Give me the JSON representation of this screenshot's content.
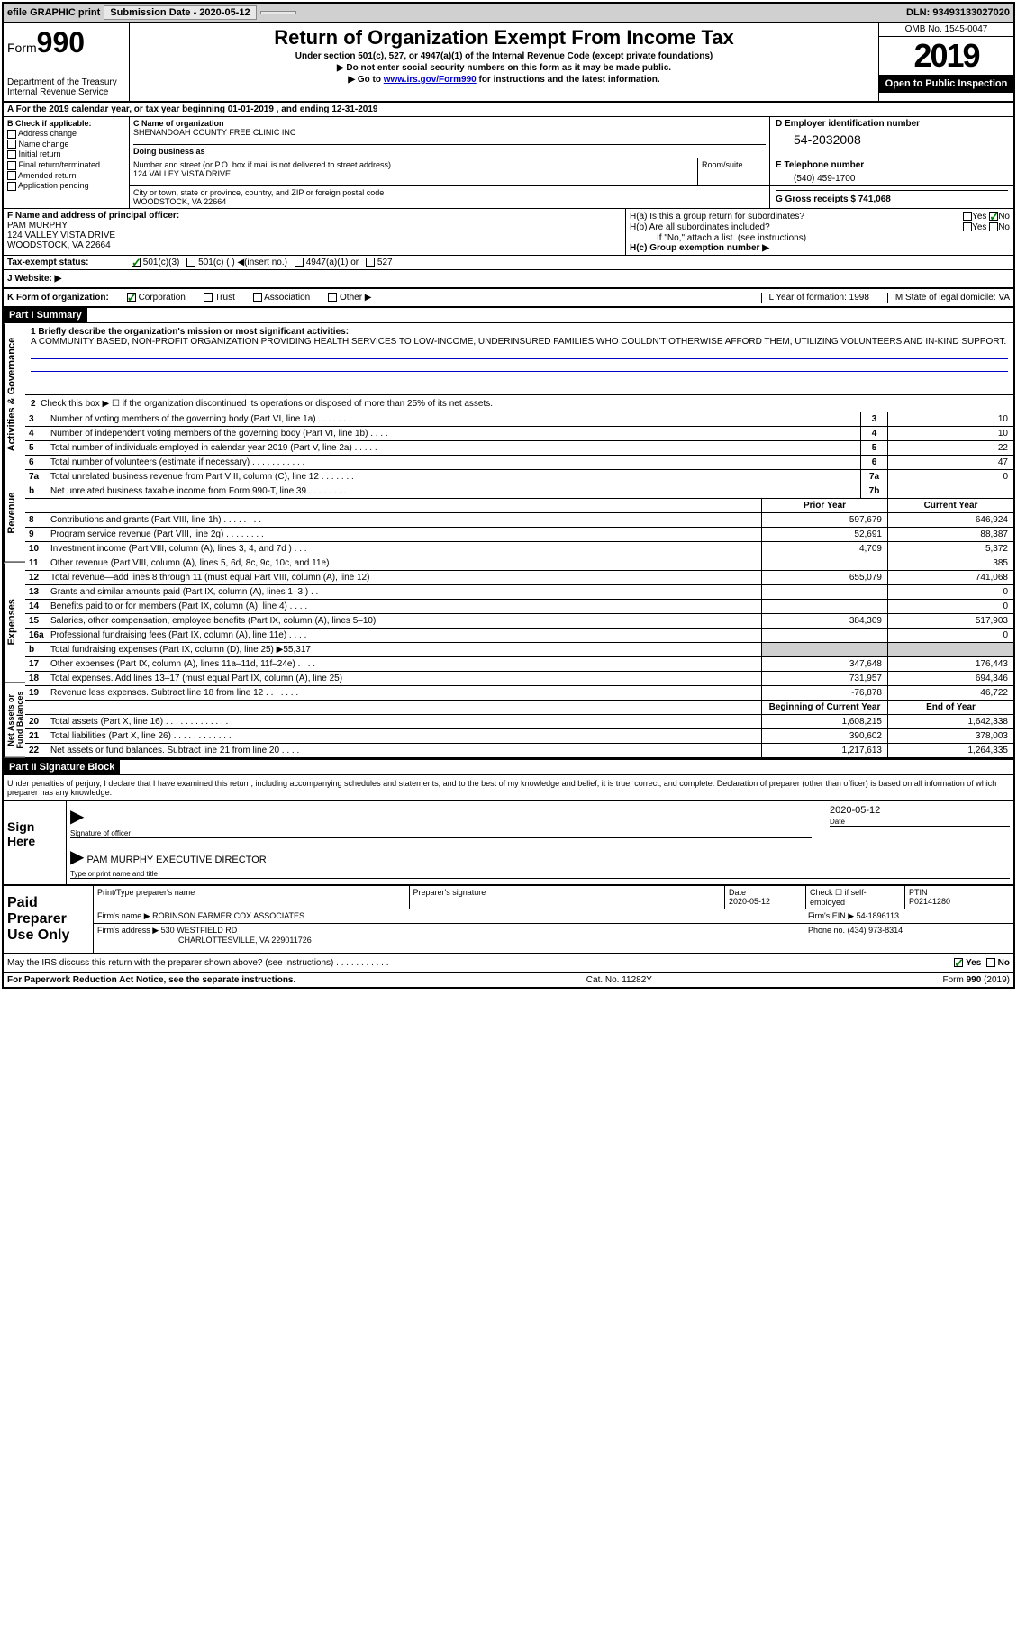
{
  "topbar": {
    "efile": "efile GRAPHIC print",
    "submission_label": "Submission Date - 2020-05-12",
    "dln": "DLN: 93493133027020"
  },
  "header": {
    "form_label": "Form",
    "form_number": "990",
    "dept": "Department of the Treasury\nInternal Revenue Service",
    "title": "Return of Organization Exempt From Income Tax",
    "subtitle1": "Under section 501(c), 527, or 4947(a)(1) of the Internal Revenue Code (except private foundations)",
    "subtitle2": "▶ Do not enter social security numbers on this form as it may be made public.",
    "subtitle3_prefix": "▶ Go to ",
    "subtitle3_link": "www.irs.gov/Form990",
    "subtitle3_suffix": " for instructions and the latest information.",
    "omb": "OMB No. 1545-0047",
    "year": "2019",
    "open_public": "Open to Public Inspection"
  },
  "rowA": "A For the 2019 calendar year, or tax year beginning 01-01-2019   , and ending 12-31-2019",
  "sectionB": {
    "header": "B Check if applicable:",
    "items": [
      "Address change",
      "Name change",
      "Initial return",
      "Final return/terminated",
      "Amended return",
      "Application pending"
    ]
  },
  "sectionC": {
    "name_lbl": "C Name of organization",
    "name": "SHENANDOAH COUNTY FREE CLINIC INC",
    "dba_lbl": "Doing business as",
    "addr_lbl": "Number and street (or P.O. box if mail is not delivered to street address)",
    "addr": "124 VALLEY VISTA DRIVE",
    "room_lbl": "Room/suite",
    "city_lbl": "City or town, state or province, country, and ZIP or foreign postal code",
    "city": "WOODSTOCK, VA  22664"
  },
  "sectionD": {
    "lbl": "D Employer identification number",
    "val": "54-2032008"
  },
  "sectionE": {
    "lbl": "E Telephone number",
    "val": "(540) 459-1700"
  },
  "sectionG": {
    "lbl": "G Gross receipts $ 741,068"
  },
  "sectionF": {
    "lbl": "F  Name and address of principal officer:",
    "name": "PAM MURPHY",
    "addr1": "124 VALLEY VISTA DRIVE",
    "addr2": "WOODSTOCK, VA  22664"
  },
  "sectionH": {
    "a": "H(a)  Is this a group return for subordinates?",
    "a_no": "No",
    "b": "H(b)  Are all subordinates included?",
    "note": "If \"No,\" attach a list. (see instructions)",
    "c": "H(c)  Group exemption number ▶"
  },
  "taxStatus": {
    "lbl": "Tax-exempt status:",
    "opts": [
      "501(c)(3)",
      "501(c) (  ) ◀(insert no.)",
      "4947(a)(1) or",
      "527"
    ]
  },
  "website": "J   Website: ▶",
  "rowK": {
    "k": "K Form of organization:",
    "k_opts": [
      "Corporation",
      "Trust",
      "Association",
      "Other ▶"
    ],
    "l": "L Year of formation: 1998",
    "m": "M State of legal domicile: VA"
  },
  "part1": {
    "header": "Part I      Summary",
    "side_gov": "Activities & Governance",
    "side_rev": "Revenue",
    "side_exp": "Expenses",
    "side_net": "Net Assets or Fund Balances",
    "line1_lbl": "1  Briefly describe the organization's mission or most significant activities:",
    "line1_text": "A COMMUNITY BASED, NON-PROFIT ORGANIZATION PROVIDING HEALTH SERVICES TO LOW-INCOME, UNDERINSURED FAMILIES WHO COULDN'T OTHERWISE AFFORD THEM, UTILIZING VOLUNTEERS AND IN-KIND SUPPORT.",
    "line2": "Check this box ▶ ☐ if the organization discontinued its operations or disposed of more than 25% of its net assets.",
    "hdr_prior": "Prior Year",
    "hdr_current": "Current Year",
    "hdr_begin": "Beginning of Current Year",
    "hdr_end": "End of Year",
    "lines_gov": [
      {
        "n": "3",
        "d": "Number of voting members of the governing body (Part VI, line 1a)  .    .    .    .    .    .    .",
        "box": "3",
        "v": "10"
      },
      {
        "n": "4",
        "d": "Number of independent voting members of the governing body (Part VI, line 1b)  .    .    .    .",
        "box": "4",
        "v": "10"
      },
      {
        "n": "5",
        "d": "Total number of individuals employed in calendar year 2019 (Part V, line 2a)  .    .    .    .    .",
        "box": "5",
        "v": "22"
      },
      {
        "n": "6",
        "d": "Total number of volunteers (estimate if necessary)    .    .    .    .    .    .    .    .    .    .    .",
        "box": "6",
        "v": "47"
      },
      {
        "n": "7a",
        "d": "Total unrelated business revenue from Part VIII, column (C), line 12   .    .    .    .    .    .    .",
        "box": "7a",
        "v": "0"
      },
      {
        "n": "b",
        "d": "Net unrelated business taxable income from Form 990-T, line 39   .    .    .    .    .    .    .    .",
        "box": "7b",
        "v": ""
      }
    ],
    "lines_rev": [
      {
        "n": "8",
        "d": "Contributions and grants (Part VIII, line 1h)   .    .    .    .    .    .    .    .",
        "p": "597,679",
        "c": "646,924"
      },
      {
        "n": "9",
        "d": "Program service revenue (Part VIII, line 2g)    .    .    .    .    .    .    .    .",
        "p": "52,691",
        "c": "88,387"
      },
      {
        "n": "10",
        "d": "Investment income (Part VIII, column (A), lines 3, 4, and 7d )    .    .    .",
        "p": "4,709",
        "c": "5,372"
      },
      {
        "n": "11",
        "d": "Other revenue (Part VIII, column (A), lines 5, 6d, 8c, 9c, 10c, and 11e)",
        "p": "",
        "c": "385"
      },
      {
        "n": "12",
        "d": "Total revenue—add lines 8 through 11 (must equal Part VIII, column (A), line 12)",
        "p": "655,079",
        "c": "741,068"
      }
    ],
    "lines_exp": [
      {
        "n": "13",
        "d": "Grants and similar amounts paid (Part IX, column (A), lines 1–3 )  .    .    .",
        "p": "",
        "c": "0"
      },
      {
        "n": "14",
        "d": "Benefits paid to or for members (Part IX, column (A), line 4)   .    .    .    .",
        "p": "",
        "c": "0"
      },
      {
        "n": "15",
        "d": "Salaries, other compensation, employee benefits (Part IX, column (A), lines 5–10)",
        "p": "384,309",
        "c": "517,903"
      },
      {
        "n": "16a",
        "d": "Professional fundraising fees (Part IX, column (A), line 11e)   .    .    .    .",
        "p": "",
        "c": "0"
      },
      {
        "n": "b",
        "d": "Total fundraising expenses (Part IX, column (D), line 25) ▶55,317",
        "p": "",
        "c": "",
        "shaded": true
      },
      {
        "n": "17",
        "d": "Other expenses (Part IX, column (A), lines 11a–11d, 11f–24e)   .    .    .    .",
        "p": "347,648",
        "c": "176,443"
      },
      {
        "n": "18",
        "d": "Total expenses. Add lines 13–17 (must equal Part IX, column (A), line 25)",
        "p": "731,957",
        "c": "694,346"
      },
      {
        "n": "19",
        "d": "Revenue less expenses. Subtract line 18 from line 12 .    .     .    .    .    .    .",
        "p": "-76,878",
        "c": "46,722"
      }
    ],
    "lines_net": [
      {
        "n": "20",
        "d": "Total assets (Part X, line 16)  .    .    .    .    .    .    .    .    .    .    .    .    .",
        "p": "1,608,215",
        "c": "1,642,338"
      },
      {
        "n": "21",
        "d": "Total liabilities (Part X, line 26) .    .    .    .    .    .    .    .    .    .    .    .",
        "p": "390,602",
        "c": "378,003"
      },
      {
        "n": "22",
        "d": "Net assets or fund balances. Subtract line 21 from line 20   .    .    .    .",
        "p": "1,217,613",
        "c": "1,264,335"
      }
    ]
  },
  "part2": {
    "header": "Part II      Signature Block",
    "declaration": "Under penalties of perjury, I declare that I have examined this return, including accompanying schedules and statements, and to the best of my knowledge and belief, it is true, correct, and complete. Declaration of preparer (other than officer) is based on all information of which preparer has any knowledge.",
    "sign_here": "Sign Here",
    "sig_officer_lbl": "Signature of officer",
    "sig_date": "2020-05-12",
    "date_lbl": "Date",
    "officer_name": "PAM MURPHY  EXECUTIVE DIRECTOR",
    "officer_name_lbl": "Type or print name and title",
    "paid": "Paid Preparer Use Only",
    "prep_name_lbl": "Print/Type preparer's name",
    "prep_sig_lbl": "Preparer's signature",
    "prep_date_lbl": "Date",
    "prep_date": "2020-05-12",
    "check_lbl": "Check ☐ if self-employed",
    "ptin_lbl": "PTIN",
    "ptin": "P02141280",
    "firm_name_lbl": "Firm's name    ▶",
    "firm_name": "ROBINSON FARMER COX ASSOCIATES",
    "firm_ein_lbl": "Firm's EIN ▶",
    "firm_ein": "54-1896113",
    "firm_addr_lbl": "Firm's address ▶",
    "firm_addr1": "530 WESTFIELD RD",
    "firm_addr2": "CHARLOTTESVILLE, VA  229011726",
    "phone_lbl": "Phone no.",
    "phone": "(434) 973-8314",
    "discuss": "May the IRS discuss this return with the preparer shown above? (see instructions)    .    .    .    .    .    .    .    .    .    .    .",
    "yes": "Yes",
    "no": "No"
  },
  "footer": {
    "left": "For Paperwork Reduction Act Notice, see the separate instructions.",
    "center": "Cat. No. 11282Y",
    "right": "Form 990 (2019)"
  },
  "colors": {
    "link": "#0000cc",
    "check": "#008000"
  }
}
